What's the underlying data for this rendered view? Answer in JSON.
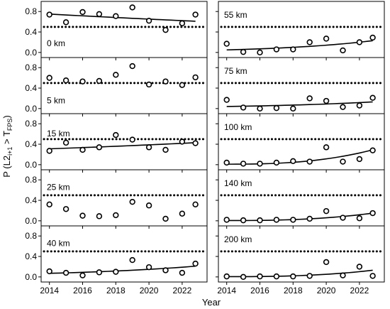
{
  "chart_data": {
    "type": "scatter",
    "xlabel": "Year",
    "ylabel_main": "P (L2",
    "ylabel_sub1": "i+1",
    "ylabel_mid": " > T",
    "ylabel_sub2": "FPS",
    "ylabel_end": ")",
    "x_ticks": [
      2014,
      2016,
      2018,
      2020,
      2022
    ],
    "y_ticks": [
      0.0,
      0.4,
      0.8
    ],
    "x_range": [
      2013.5,
      2023.5
    ],
    "y_range": [
      -0.03,
      0.9
    ],
    "threshold": 0.5,
    "years": [
      2014,
      2015,
      2016,
      2017,
      2018,
      2019,
      2020,
      2021,
      2022,
      2022.8
    ],
    "panels": [
      {
        "label": "0 km",
        "points": [
          0.74,
          0.59,
          0.79,
          0.75,
          0.71,
          0.88,
          0.62,
          0.44,
          0.57,
          0.74
        ],
        "trend": [
          0.75,
          0.61
        ]
      },
      {
        "label": "5 km",
        "points": [
          0.6,
          0.55,
          0.53,
          0.54,
          0.66,
          0.83,
          0.47,
          0.53,
          0.46,
          0.61
        ],
        "trend": null
      },
      {
        "label": "15 km",
        "points": [
          0.27,
          0.43,
          0.29,
          0.34,
          0.58,
          0.49,
          0.34,
          0.29,
          0.45,
          0.42
        ],
        "trend": [
          0.31,
          0.43
        ]
      },
      {
        "label": "25 km",
        "points": [
          0.32,
          0.23,
          0.1,
          0.09,
          0.11,
          0.37,
          0.3,
          0.04,
          0.14,
          0.32
        ],
        "trend": null
      },
      {
        "label": "40 km",
        "points": [
          0.11,
          0.08,
          0.03,
          0.09,
          0.1,
          0.33,
          0.19,
          0.13,
          0.08,
          0.26
        ],
        "trend": [
          0.07,
          0.21
        ]
      },
      {
        "label": "55 km",
        "points": [
          0.17,
          0.01,
          0.0,
          0.06,
          0.06,
          0.2,
          0.27,
          0.04,
          0.2,
          0.29
        ],
        "trend": [
          0.05,
          0.23
        ]
      },
      {
        "label": "75 km",
        "points": [
          0.17,
          0.02,
          0.0,
          0.01,
          0.0,
          0.2,
          0.15,
          0.03,
          0.06,
          0.21
        ],
        "trend": [
          0.04,
          0.13
        ]
      },
      {
        "label": "100 km",
        "points": [
          0.04,
          0.02,
          0.02,
          0.04,
          0.07,
          0.06,
          0.34,
          0.06,
          0.11,
          0.28
        ],
        "trend": [
          0.01,
          0.29
        ]
      },
      {
        "label": "140 km",
        "points": [
          0.02,
          0.01,
          0.01,
          0.02,
          0.02,
          0.04,
          0.19,
          0.06,
          0.05,
          0.15
        ],
        "trend": [
          0.005,
          0.15
        ]
      },
      {
        "label": "200 km",
        "points": [
          0.01,
          0.0,
          0.01,
          0.01,
          0.01,
          0.02,
          0.29,
          0.03,
          0.2,
          0.02
        ],
        "trend": [
          0.005,
          0.13
        ]
      }
    ],
    "grid": false,
    "legend": "none"
  }
}
